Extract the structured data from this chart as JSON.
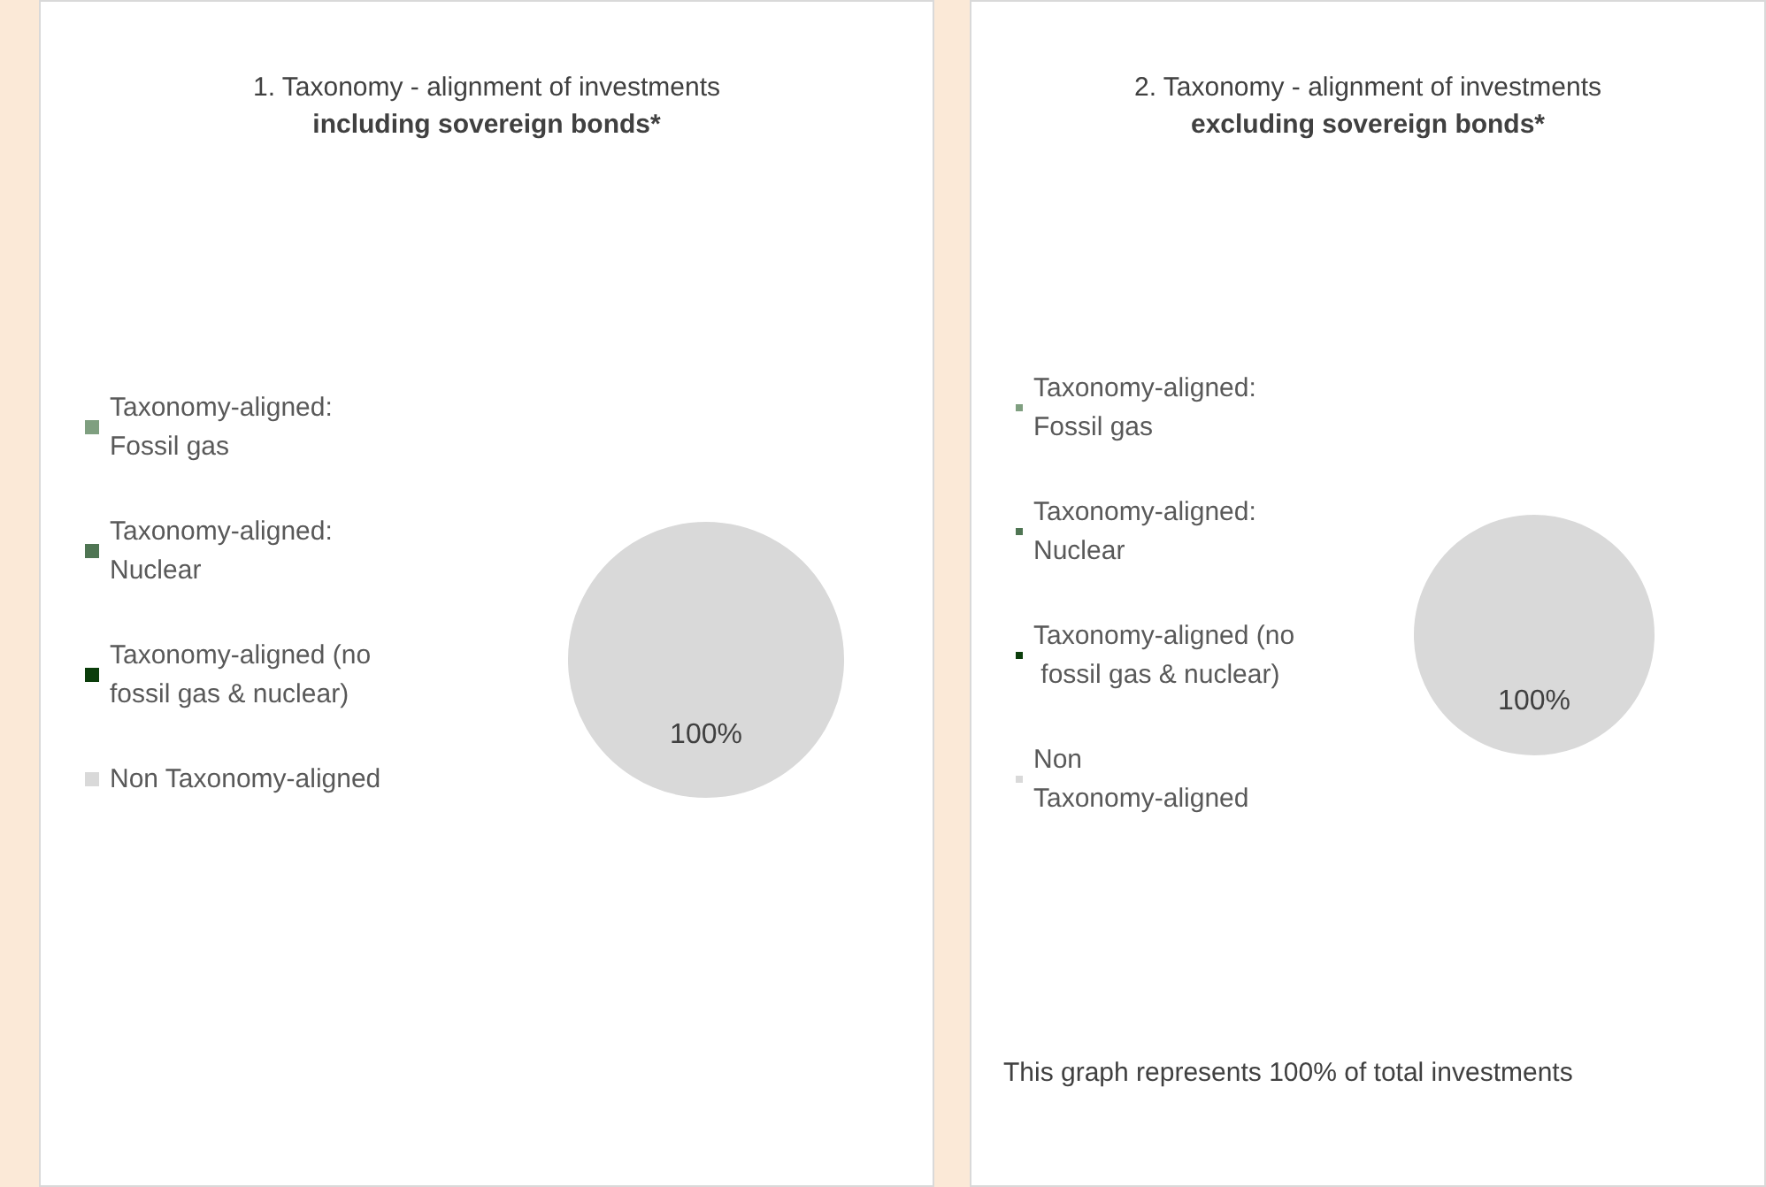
{
  "chart_data": [
    {
      "type": "pie",
      "title": "1. Taxonomy - alignment of investments",
      "subtitle": "including sovereign bonds*",
      "categories": [
        "Taxonomy-aligned: Fossil gas",
        "Taxonomy-aligned: Nuclear",
        "Taxonomy-aligned (no fossil gas & nuclear)",
        "Non Taxonomy-aligned"
      ],
      "values": [
        0,
        0,
        0,
        100
      ],
      "colors": [
        "#7f9f80",
        "#4f7553",
        "#0b3d0b",
        "#d9d9d9"
      ],
      "value_labels": [
        null,
        null,
        null,
        "100%"
      ],
      "legend": "left"
    },
    {
      "type": "pie",
      "title": "2. Taxonomy - alignment of investments",
      "subtitle": "excluding sovereign bonds*",
      "categories": [
        "Taxonomy-aligned: Fossil gas",
        "Taxonomy-aligned: Nuclear",
        "Taxonomy-aligned (no fossil gas & nuclear)",
        "Non Taxonomy-aligned"
      ],
      "values": [
        0,
        0,
        0,
        100
      ],
      "colors": [
        "#7f9f80",
        "#4f7553",
        "#0b3d0b",
        "#d9d9d9"
      ],
      "value_labels": [
        null,
        null,
        null,
        "100%"
      ],
      "legend": "left",
      "annotations": [
        "This graph represents 100% of total investments"
      ]
    }
  ]
}
